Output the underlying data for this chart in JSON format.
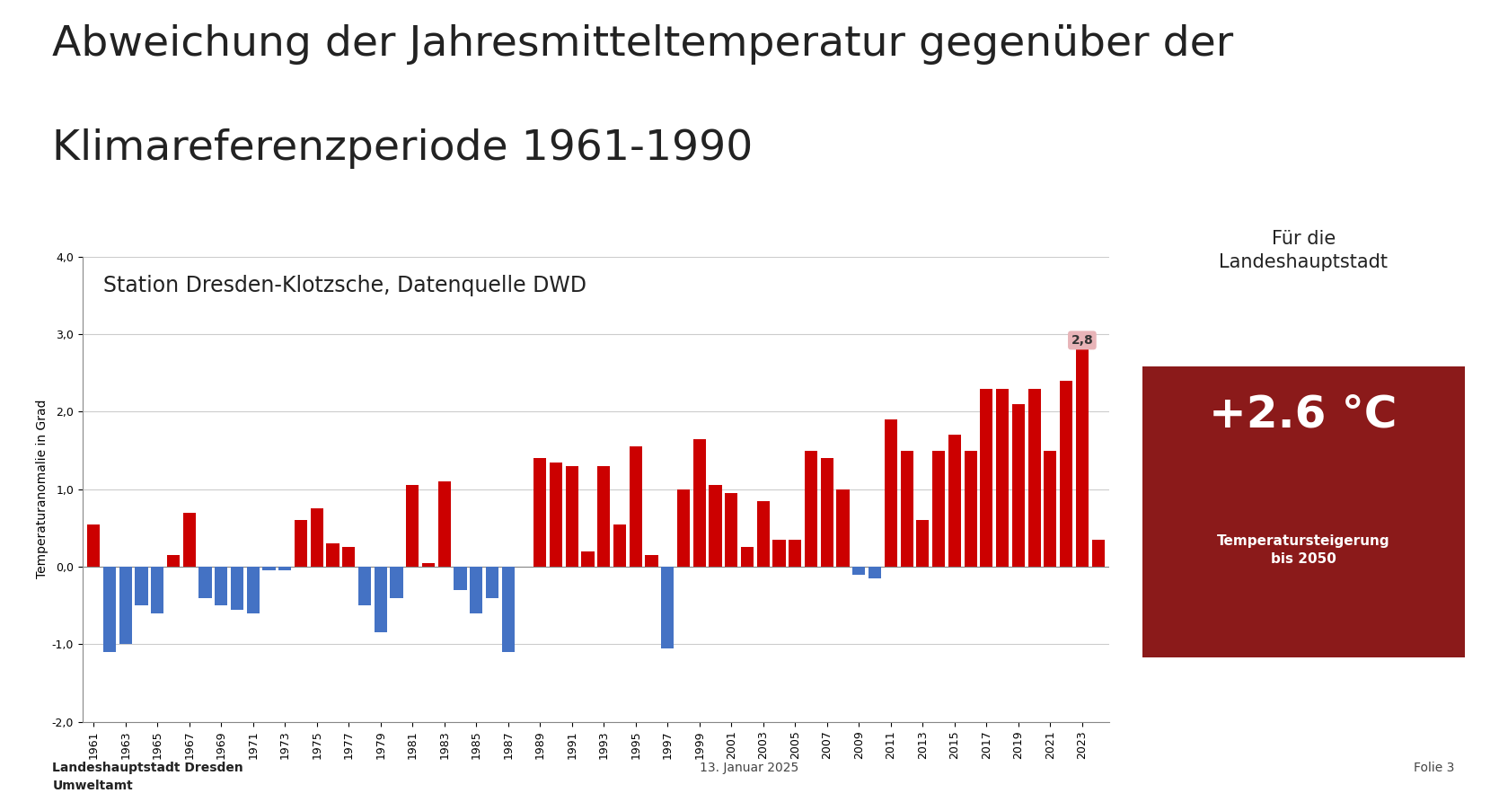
{
  "title_line1": "Abweichung der Jahresmitteltemperatur gegenüber der",
  "title_line2": "Klimareferenzperiode 1961-1990",
  "subtitle": "Station Dresden-Klotzsche, Datenquelle DWD",
  "ylabel": "Temperaturanomalie in Grad",
  "footer_left": "Landeshauptstadt Dresden\nUmweltamt",
  "footer_center": "13. Januar 2025",
  "footer_right": "Folie 3",
  "years": [
    1961,
    1962,
    1963,
    1964,
    1965,
    1966,
    1967,
    1968,
    1969,
    1970,
    1971,
    1972,
    1973,
    1974,
    1975,
    1976,
    1977,
    1978,
    1979,
    1980,
    1981,
    1982,
    1983,
    1984,
    1985,
    1986,
    1987,
    1988,
    1989,
    1990,
    1991,
    1992,
    1993,
    1994,
    1995,
    1996,
    1997,
    1998,
    1999,
    2000,
    2001,
    2002,
    2003,
    2004,
    2005,
    2006,
    2007,
    2008,
    2009,
    2010,
    2011,
    2012,
    2013,
    2014,
    2015,
    2016,
    2017,
    2018,
    2019,
    2020,
    2021,
    2022,
    2023,
    2024
  ],
  "values": [
    0.55,
    -1.1,
    -1.0,
    -0.5,
    -0.6,
    0.15,
    0.7,
    -0.4,
    -0.5,
    -0.55,
    -0.6,
    -0.05,
    -0.05,
    0.6,
    0.75,
    0.3,
    0.25,
    -0.5,
    -0.85,
    -0.4,
    1.05,
    0.05,
    1.1,
    -0.3,
    -0.6,
    -0.4,
    -1.1,
    0.0,
    1.4,
    1.35,
    1.3,
    0.2,
    1.3,
    0.55,
    1.55,
    0.15,
    -1.05,
    1.0,
    1.65,
    1.05,
    0.95,
    0.25,
    0.85,
    0.35,
    0.35,
    1.5,
    1.4,
    1.0,
    -0.1,
    -0.15,
    1.9,
    1.5,
    0.6,
    1.5,
    1.7,
    1.5,
    2.3,
    2.3,
    2.1,
    2.3,
    1.5,
    2.4,
    2.8,
    0.35
  ],
  "ylim": [
    -2.0,
    4.0
  ],
  "yticks": [
    -2.0,
    -1.0,
    0.0,
    1.0,
    2.0,
    3.0,
    4.0
  ],
  "ytick_labels": [
    "-2,0",
    "-1,0",
    "0,0",
    "1,0",
    "2,0",
    "3,0",
    "4,0"
  ],
  "bar_color_positive": "#cc0000",
  "bar_color_negative": "#4472c4",
  "annotate_idx": 62,
  "annotate_value": "2,8",
  "annotation_box_color": "#e8b4b8",
  "side_box_bg": "#dedad0",
  "side_box_red_bg": "#8b1a1a",
  "side_box_title": "Für die\nLandeshauptstadt",
  "side_box_value": "+2.6 °C",
  "side_box_subtitle": "Temperatursteigerung\nbis 2050",
  "background_color": "#ffffff",
  "plot_bg_color": "#ffffff",
  "grid_color": "#cccccc",
  "title_fontsize": 34,
  "subtitle_fontsize": 17,
  "ylabel_fontsize": 10,
  "tick_fontsize": 9,
  "footer_fontsize": 10
}
